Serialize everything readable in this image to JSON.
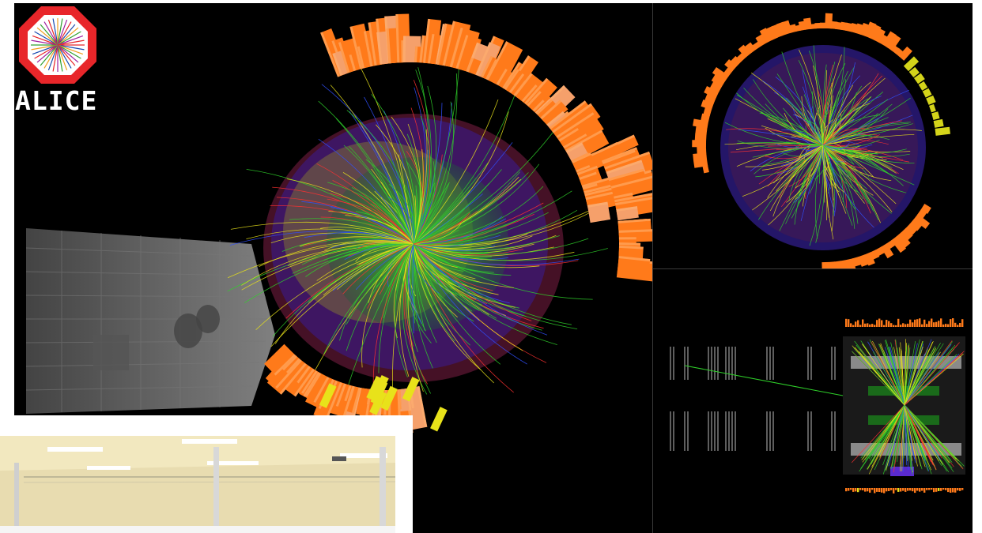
{
  "logo": {
    "text": "ALICE"
  },
  "colors": {
    "background": "#000000",
    "calorimeter": "#ff7a1a",
    "calorimeter_light": "#f5a06b",
    "tracks_green": "#2fd12a",
    "tracks_yellow": "#e8e21a",
    "tracks_red": "#ff3030",
    "tracks_blue": "#3050ff",
    "detector_purple": "#3a1a8a",
    "muon_gray": "#9a9a9a"
  },
  "photo": {
    "subject": "laboratory-interior-photo"
  }
}
